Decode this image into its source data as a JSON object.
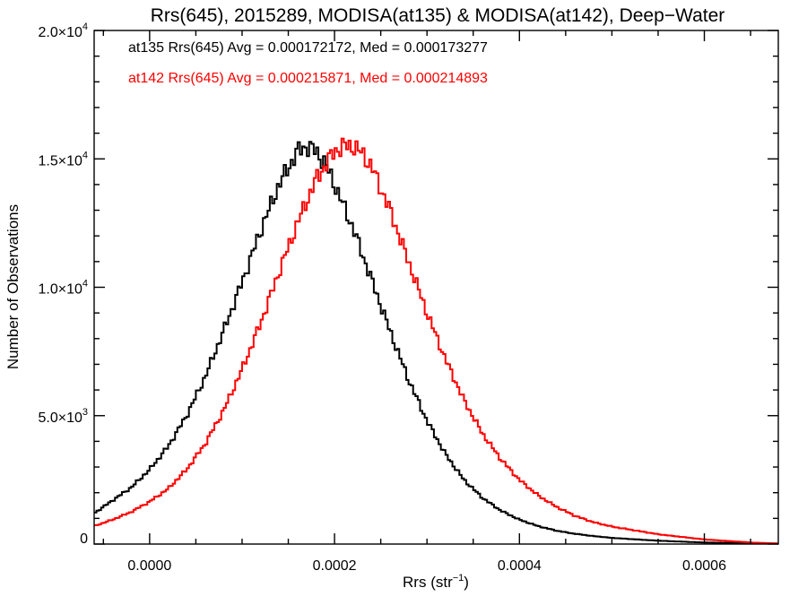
{
  "chart_data": {
    "type": "line",
    "title": "Rrs(645), 2015289, MODISA(at135) & MODISA(at142), Deep−Water",
    "xlabel": "Rrs (str",
    "xlabel_sup": "−1",
    "xlabel_suffix": ")",
    "ylabel": "Number of Observations",
    "xlim": [
      -6e-05,
      0.00068
    ],
    "ylim": [
      0,
      20000
    ],
    "grid": false,
    "legend": "top-left",
    "x_ticks": [
      {
        "value": 0.0,
        "label": "0.0000"
      },
      {
        "value": 0.0002,
        "label": "0.0002"
      },
      {
        "value": 0.0004,
        "label": "0.0004"
      },
      {
        "value": 0.0006,
        "label": "0.0006"
      }
    ],
    "y_ticks": [
      {
        "value": 0,
        "mant": "0",
        "exp": ""
      },
      {
        "value": 5000,
        "mant": "5.0×10",
        "exp": "3"
      },
      {
        "value": 10000,
        "mant": "1.0×10",
        "exp": "4"
      },
      {
        "value": 15000,
        "mant": "1.5×10",
        "exp": "4"
      },
      {
        "value": 20000,
        "mant": "2.0×10",
        "exp": "4"
      }
    ],
    "annotations": [
      {
        "text": "at135 Rrs(645) Avg = 0.000172172, Med = 0.000173277",
        "color": "#000000"
      },
      {
        "text": "at142 Rrs(645) Avg = 0.000215871, Med = 0.000214893",
        "color": "#ff0000"
      }
    ],
    "series": [
      {
        "color": "#000000",
        "x": [
          -6e-05,
          -4e-05,
          -2e-05,
          0.0,
          2e-05,
          4e-05,
          6e-05,
          8e-05,
          0.0001,
          0.00012,
          0.00014,
          0.00016,
          0.00017,
          0.00018,
          0.00019,
          0.0002,
          0.00022,
          0.00024,
          0.00026,
          0.00028,
          0.0003,
          0.00032,
          0.00034,
          0.00036,
          0.00038,
          0.0004,
          0.00042,
          0.00044,
          0.00046,
          0.00048,
          0.0005,
          0.00055,
          0.0006,
          0.00068
        ],
        "y": [
          1200,
          1700,
          2200,
          2900,
          3800,
          5000,
          6500,
          8300,
          10200,
          12200,
          14000,
          15300,
          15500,
          15300,
          14800,
          14000,
          12300,
          10300,
          8300,
          6400,
          4800,
          3500,
          2500,
          1800,
          1300,
          950,
          700,
          520,
          400,
          310,
          240,
          130,
          60,
          20
        ]
      },
      {
        "color": "#ff0000",
        "x": [
          -6e-05,
          -4e-05,
          -2e-05,
          0.0,
          2e-05,
          4e-05,
          6e-05,
          8e-05,
          0.0001,
          0.00012,
          0.00014,
          0.00016,
          0.00018,
          0.0002,
          0.00021,
          0.00022,
          0.00023,
          0.00024,
          0.00026,
          0.00028,
          0.0003,
          0.00032,
          0.00034,
          0.00036,
          0.00038,
          0.0004,
          0.00042,
          0.00044,
          0.00046,
          0.00048,
          0.0005,
          0.00055,
          0.0006,
          0.00065,
          0.00068
        ],
        "y": [
          700,
          950,
          1250,
          1650,
          2150,
          2900,
          3900,
          5200,
          6800,
          8600,
          10600,
          12500,
          14200,
          15300,
          15500,
          15500,
          15200,
          14700,
          13000,
          11000,
          9000,
          7200,
          5600,
          4300,
          3300,
          2500,
          1900,
          1450,
          1100,
          850,
          680,
          380,
          180,
          60,
          20
        ]
      }
    ]
  }
}
